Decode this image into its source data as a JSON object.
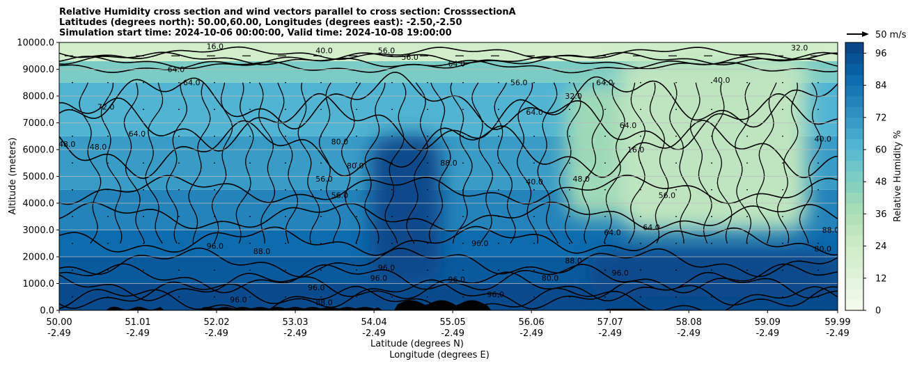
{
  "chart_data": {
    "type": "heatmap",
    "title_lines": [
      "Relative Humidity cross section and wind vectors parallel to cross section: CrosssectionA",
      "Latitudes (degrees north): 50.00,60.00, Longitudes (degrees east): -2.50,-2.50",
      "Simulation start time: 2024-10-06 00:00:00, Valid time: 2024-10-08 19:00:00"
    ],
    "xlabel": "Latitude (degrees N)",
    "xlabel2": "Longitude (degrees E)",
    "ylabel": "Altitude (meters)",
    "colorbar_label": "Relative Humidity %",
    "wind_key_label": "50 m/s",
    "xlim": [
      50.0,
      59.99
    ],
    "ylim": [
      0,
      10000
    ],
    "x_ticks": [
      {
        "lat": "50.00",
        "lon": "-2.49",
        "value": 50.0
      },
      {
        "lat": "51.01",
        "lon": "-2.49",
        "value": 51.01
      },
      {
        "lat": "52.02",
        "lon": "-2.49",
        "value": 52.02
      },
      {
        "lat": "53.03",
        "lon": "-2.49",
        "value": 53.03
      },
      {
        "lat": "54.04",
        "lon": "-2.49",
        "value": 54.04
      },
      {
        "lat": "55.05",
        "lon": "-2.49",
        "value": 55.05
      },
      {
        "lat": "56.06",
        "lon": "-2.49",
        "value": 56.06
      },
      {
        "lat": "57.07",
        "lon": "-2.49",
        "value": 57.07
      },
      {
        "lat": "58.08",
        "lon": "-2.49",
        "value": 58.08
      },
      {
        "lat": "59.09",
        "lon": "-2.49",
        "value": 59.09
      },
      {
        "lat": "59.99",
        "lon": "-2.49",
        "value": 59.99
      }
    ],
    "y_ticks": [
      "0.0",
      "1000.0",
      "2000.0",
      "3000.0",
      "4000.0",
      "5000.0",
      "6000.0",
      "7000.0",
      "8000.0",
      "9000.0",
      "10000.0"
    ],
    "y_tick_values": [
      0,
      1000,
      2000,
      3000,
      4000,
      5000,
      6000,
      7000,
      8000,
      9000,
      10000
    ],
    "colorbar_ticks": [
      "0",
      "12",
      "24",
      "36",
      "48",
      "60",
      "72",
      "84",
      "96"
    ],
    "colorbar_range": [
      0,
      100
    ],
    "colorbar_levels": 25,
    "grid": "horizontal",
    "humidity_bands": [
      {
        "from_alt": 0,
        "to_alt": 1000,
        "rh": 97
      },
      {
        "from_alt": 1000,
        "to_alt": 2000,
        "rh": 92
      },
      {
        "from_alt": 2000,
        "to_alt": 3000,
        "rh": 86
      },
      {
        "from_alt": 3000,
        "to_alt": 4500,
        "rh": 78
      },
      {
        "from_alt": 4500,
        "to_alt": 6500,
        "rh": 70
      },
      {
        "from_alt": 6500,
        "to_alt": 8500,
        "rh": 62
      },
      {
        "from_alt": 8500,
        "to_alt": 9300,
        "rh": 50
      },
      {
        "from_alt": 9300,
        "to_alt": 10000,
        "rh": 22
      }
    ],
    "dry_regions": [
      {
        "lat_from": 56.5,
        "lat_to": 57.3,
        "alt_from": 3500,
        "alt_to": 8500,
        "rh": 40
      },
      {
        "lat_from": 57.2,
        "lat_to": 59.6,
        "alt_from": 3000,
        "alt_to": 9500,
        "rh": 30
      }
    ],
    "moist_regions": [
      {
        "lat_from": 54.0,
        "lat_to": 54.9,
        "alt_from": 1000,
        "alt_to": 6500,
        "rh": 97
      },
      {
        "lat_from": 56.8,
        "lat_to": 60.0,
        "alt_from": 500,
        "alt_to": 2200,
        "rh": 97
      }
    ],
    "contour_labels": [
      {
        "lat": 52.0,
        "alt": 9750,
        "text": "16.0"
      },
      {
        "lat": 53.4,
        "alt": 9600,
        "text": "40.0"
      },
      {
        "lat": 54.2,
        "alt": 9600,
        "text": "56.0"
      },
      {
        "lat": 55.1,
        "alt": 9100,
        "text": "64.0"
      },
      {
        "lat": 54.5,
        "alt": 9350,
        "text": "56.0"
      },
      {
        "lat": 51.5,
        "alt": 8900,
        "text": "64.0"
      },
      {
        "lat": 51.7,
        "alt": 8400,
        "text": "64.0"
      },
      {
        "lat": 50.6,
        "alt": 7500,
        "text": "72.0"
      },
      {
        "lat": 50.1,
        "alt": 6100,
        "text": "48.0"
      },
      {
        "lat": 50.5,
        "alt": 6000,
        "text": "48.0"
      },
      {
        "lat": 51.0,
        "alt": 6500,
        "text": "64.0"
      },
      {
        "lat": 53.6,
        "alt": 6200,
        "text": "80.0"
      },
      {
        "lat": 53.4,
        "alt": 4800,
        "text": "56.0"
      },
      {
        "lat": 53.6,
        "alt": 4200,
        "text": "56.0"
      },
      {
        "lat": 53.8,
        "alt": 5300,
        "text": "80.0"
      },
      {
        "lat": 55.0,
        "alt": 5400,
        "text": "88.0"
      },
      {
        "lat": 56.1,
        "alt": 7300,
        "text": "64.0"
      },
      {
        "lat": 55.9,
        "alt": 8400,
        "text": "56.0"
      },
      {
        "lat": 56.6,
        "alt": 7900,
        "text": "32.0"
      },
      {
        "lat": 57.0,
        "alt": 8400,
        "text": "64.0"
      },
      {
        "lat": 57.3,
        "alt": 6800,
        "text": "64.0"
      },
      {
        "lat": 57.4,
        "alt": 5900,
        "text": "16.0"
      },
      {
        "lat": 56.1,
        "alt": 4700,
        "text": "40.0"
      },
      {
        "lat": 56.7,
        "alt": 4800,
        "text": "48.0"
      },
      {
        "lat": 57.8,
        "alt": 4200,
        "text": "56.0"
      },
      {
        "lat": 57.1,
        "alt": 2800,
        "text": "64.0"
      },
      {
        "lat": 57.6,
        "alt": 3000,
        "text": "64.0"
      },
      {
        "lat": 52.6,
        "alt": 2100,
        "text": "88.0"
      },
      {
        "lat": 52.0,
        "alt": 2300,
        "text": "96.0"
      },
      {
        "lat": 55.4,
        "alt": 2400,
        "text": "96.0"
      },
      {
        "lat": 54.2,
        "alt": 1500,
        "text": "96.0"
      },
      {
        "lat": 54.1,
        "alt": 1100,
        "text": "96.0"
      },
      {
        "lat": 55.1,
        "alt": 1050,
        "text": "96.0"
      },
      {
        "lat": 53.3,
        "alt": 750,
        "text": "96.0"
      },
      {
        "lat": 52.3,
        "alt": 300,
        "text": "96.0"
      },
      {
        "lat": 53.4,
        "alt": 200,
        "text": "88.0"
      },
      {
        "lat": 55.6,
        "alt": 500,
        "text": "96.0"
      },
      {
        "lat": 56.3,
        "alt": 1100,
        "text": "80.0"
      },
      {
        "lat": 56.6,
        "alt": 1750,
        "text": "88.0"
      },
      {
        "lat": 57.2,
        "alt": 1300,
        "text": "96.0"
      },
      {
        "lat": 59.8,
        "alt": 2200,
        "text": "80.0"
      },
      {
        "lat": 59.9,
        "alt": 2900,
        "text": "88.0"
      },
      {
        "lat": 59.5,
        "alt": 9700,
        "text": "32.0"
      },
      {
        "lat": 58.5,
        "alt": 8500,
        "text": "40.0"
      },
      {
        "lat": 59.8,
        "alt": 6300,
        "text": "40.0"
      }
    ]
  }
}
